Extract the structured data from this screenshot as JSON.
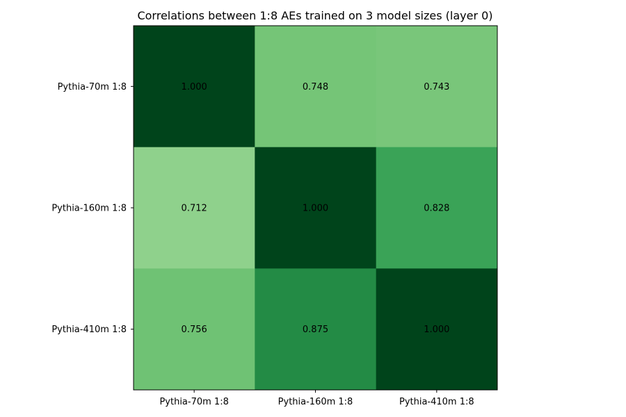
{
  "chart_data": {
    "type": "heatmap",
    "title": "Correlations between 1:8 AEs trained on 3 model sizes (layer 0)",
    "xlabel": "",
    "ylabel": "",
    "x_categories": [
      "Pythia-70m 1:8",
      "Pythia-160m 1:8",
      "Pythia-410m 1:8"
    ],
    "y_categories": [
      "Pythia-70m 1:8",
      "Pythia-160m 1:8",
      "Pythia-410m 1:8"
    ],
    "values": [
      [
        1.0,
        0.748,
        0.743
      ],
      [
        0.712,
        1.0,
        0.828
      ],
      [
        0.756,
        0.875,
        1.0
      ]
    ],
    "value_labels": [
      [
        "1.000",
        "0.748",
        "0.743"
      ],
      [
        "0.712",
        "1.000",
        "0.828"
      ],
      [
        "0.756",
        "0.875",
        "1.000"
      ]
    ],
    "colormap": "Greens",
    "grid": false,
    "legend": "none"
  }
}
